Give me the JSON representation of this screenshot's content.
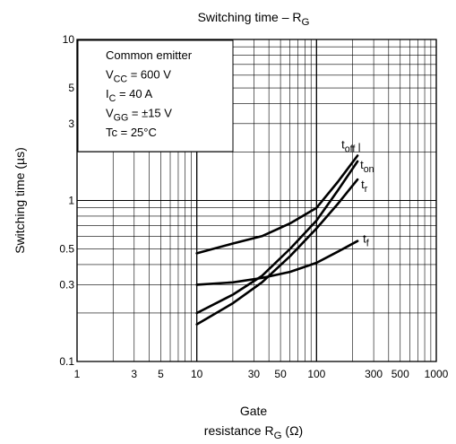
{
  "chart_data": {
    "type": "line",
    "title_main": "Switching time – R",
    "title_sub": "G",
    "xlabel_line1": "Gate",
    "xlabel_line2_main": "resistance  R",
    "xlabel_line2_sub": "G",
    "xlabel_unit": "(Ω)",
    "ylabel": "Switching time",
    "ylabel_unit": "(µs)",
    "xscale": "log",
    "yscale": "log",
    "xlim": [
      1,
      1000
    ],
    "ylim": [
      0.1,
      10
    ],
    "grid": true,
    "xticks": [
      {
        "v": 1,
        "label": "1"
      },
      {
        "v": 3,
        "label": "3"
      },
      {
        "v": 5,
        "label": "5"
      },
      {
        "v": 10,
        "label": "10"
      },
      {
        "v": 30,
        "label": "30"
      },
      {
        "v": 50,
        "label": "50"
      },
      {
        "v": 100,
        "label": "100"
      },
      {
        "v": 300,
        "label": "300"
      },
      {
        "v": 500,
        "label": "500"
      },
      {
        "v": 1000,
        "label": "1000"
      }
    ],
    "yticks": [
      {
        "v": 0.1,
        "label": "0.1"
      },
      {
        "v": 0.3,
        "label": "0.3"
      },
      {
        "v": 0.5,
        "label": "0.5"
      },
      {
        "v": 1,
        "label": "1"
      },
      {
        "v": 3,
        "label": "3"
      },
      {
        "v": 5,
        "label": "5"
      },
      {
        "v": 10,
        "label": "10"
      }
    ],
    "conditions": [
      {
        "main": "Common emitter",
        "sub": "",
        "rest": ""
      },
      {
        "main": "V",
        "sub": "CC",
        "rest": " = 600 V"
      },
      {
        "main": "I",
        "sub": "C",
        "rest": " = 40 A"
      },
      {
        "main": "V",
        "sub": "GG",
        "rest": " = ±15 V"
      },
      {
        "main": "Tc = 25°C",
        "sub": "",
        "rest": ""
      }
    ],
    "series": [
      {
        "label_main": "t",
        "label_sub": "off",
        "x": [
          10,
          20,
          35,
          60,
          100,
          150,
          220
        ],
        "y": [
          0.47,
          0.54,
          0.6,
          0.72,
          0.9,
          1.3,
          1.9
        ]
      },
      {
        "label_main": "t",
        "label_sub": "on",
        "x": [
          10,
          20,
          35,
          60,
          100,
          150,
          220
        ],
        "y": [
          0.2,
          0.26,
          0.34,
          0.5,
          0.75,
          1.15,
          1.75
        ]
      },
      {
        "label_main": "t",
        "label_sub": "r",
        "x": [
          10,
          20,
          35,
          60,
          100,
          150,
          220
        ],
        "y": [
          0.17,
          0.23,
          0.31,
          0.45,
          0.67,
          0.95,
          1.35
        ]
      },
      {
        "label_main": "t",
        "label_sub": "f",
        "x": [
          10,
          20,
          35,
          60,
          100,
          150,
          220
        ],
        "y": [
          0.3,
          0.31,
          0.33,
          0.36,
          0.41,
          0.48,
          0.56
        ]
      }
    ]
  }
}
